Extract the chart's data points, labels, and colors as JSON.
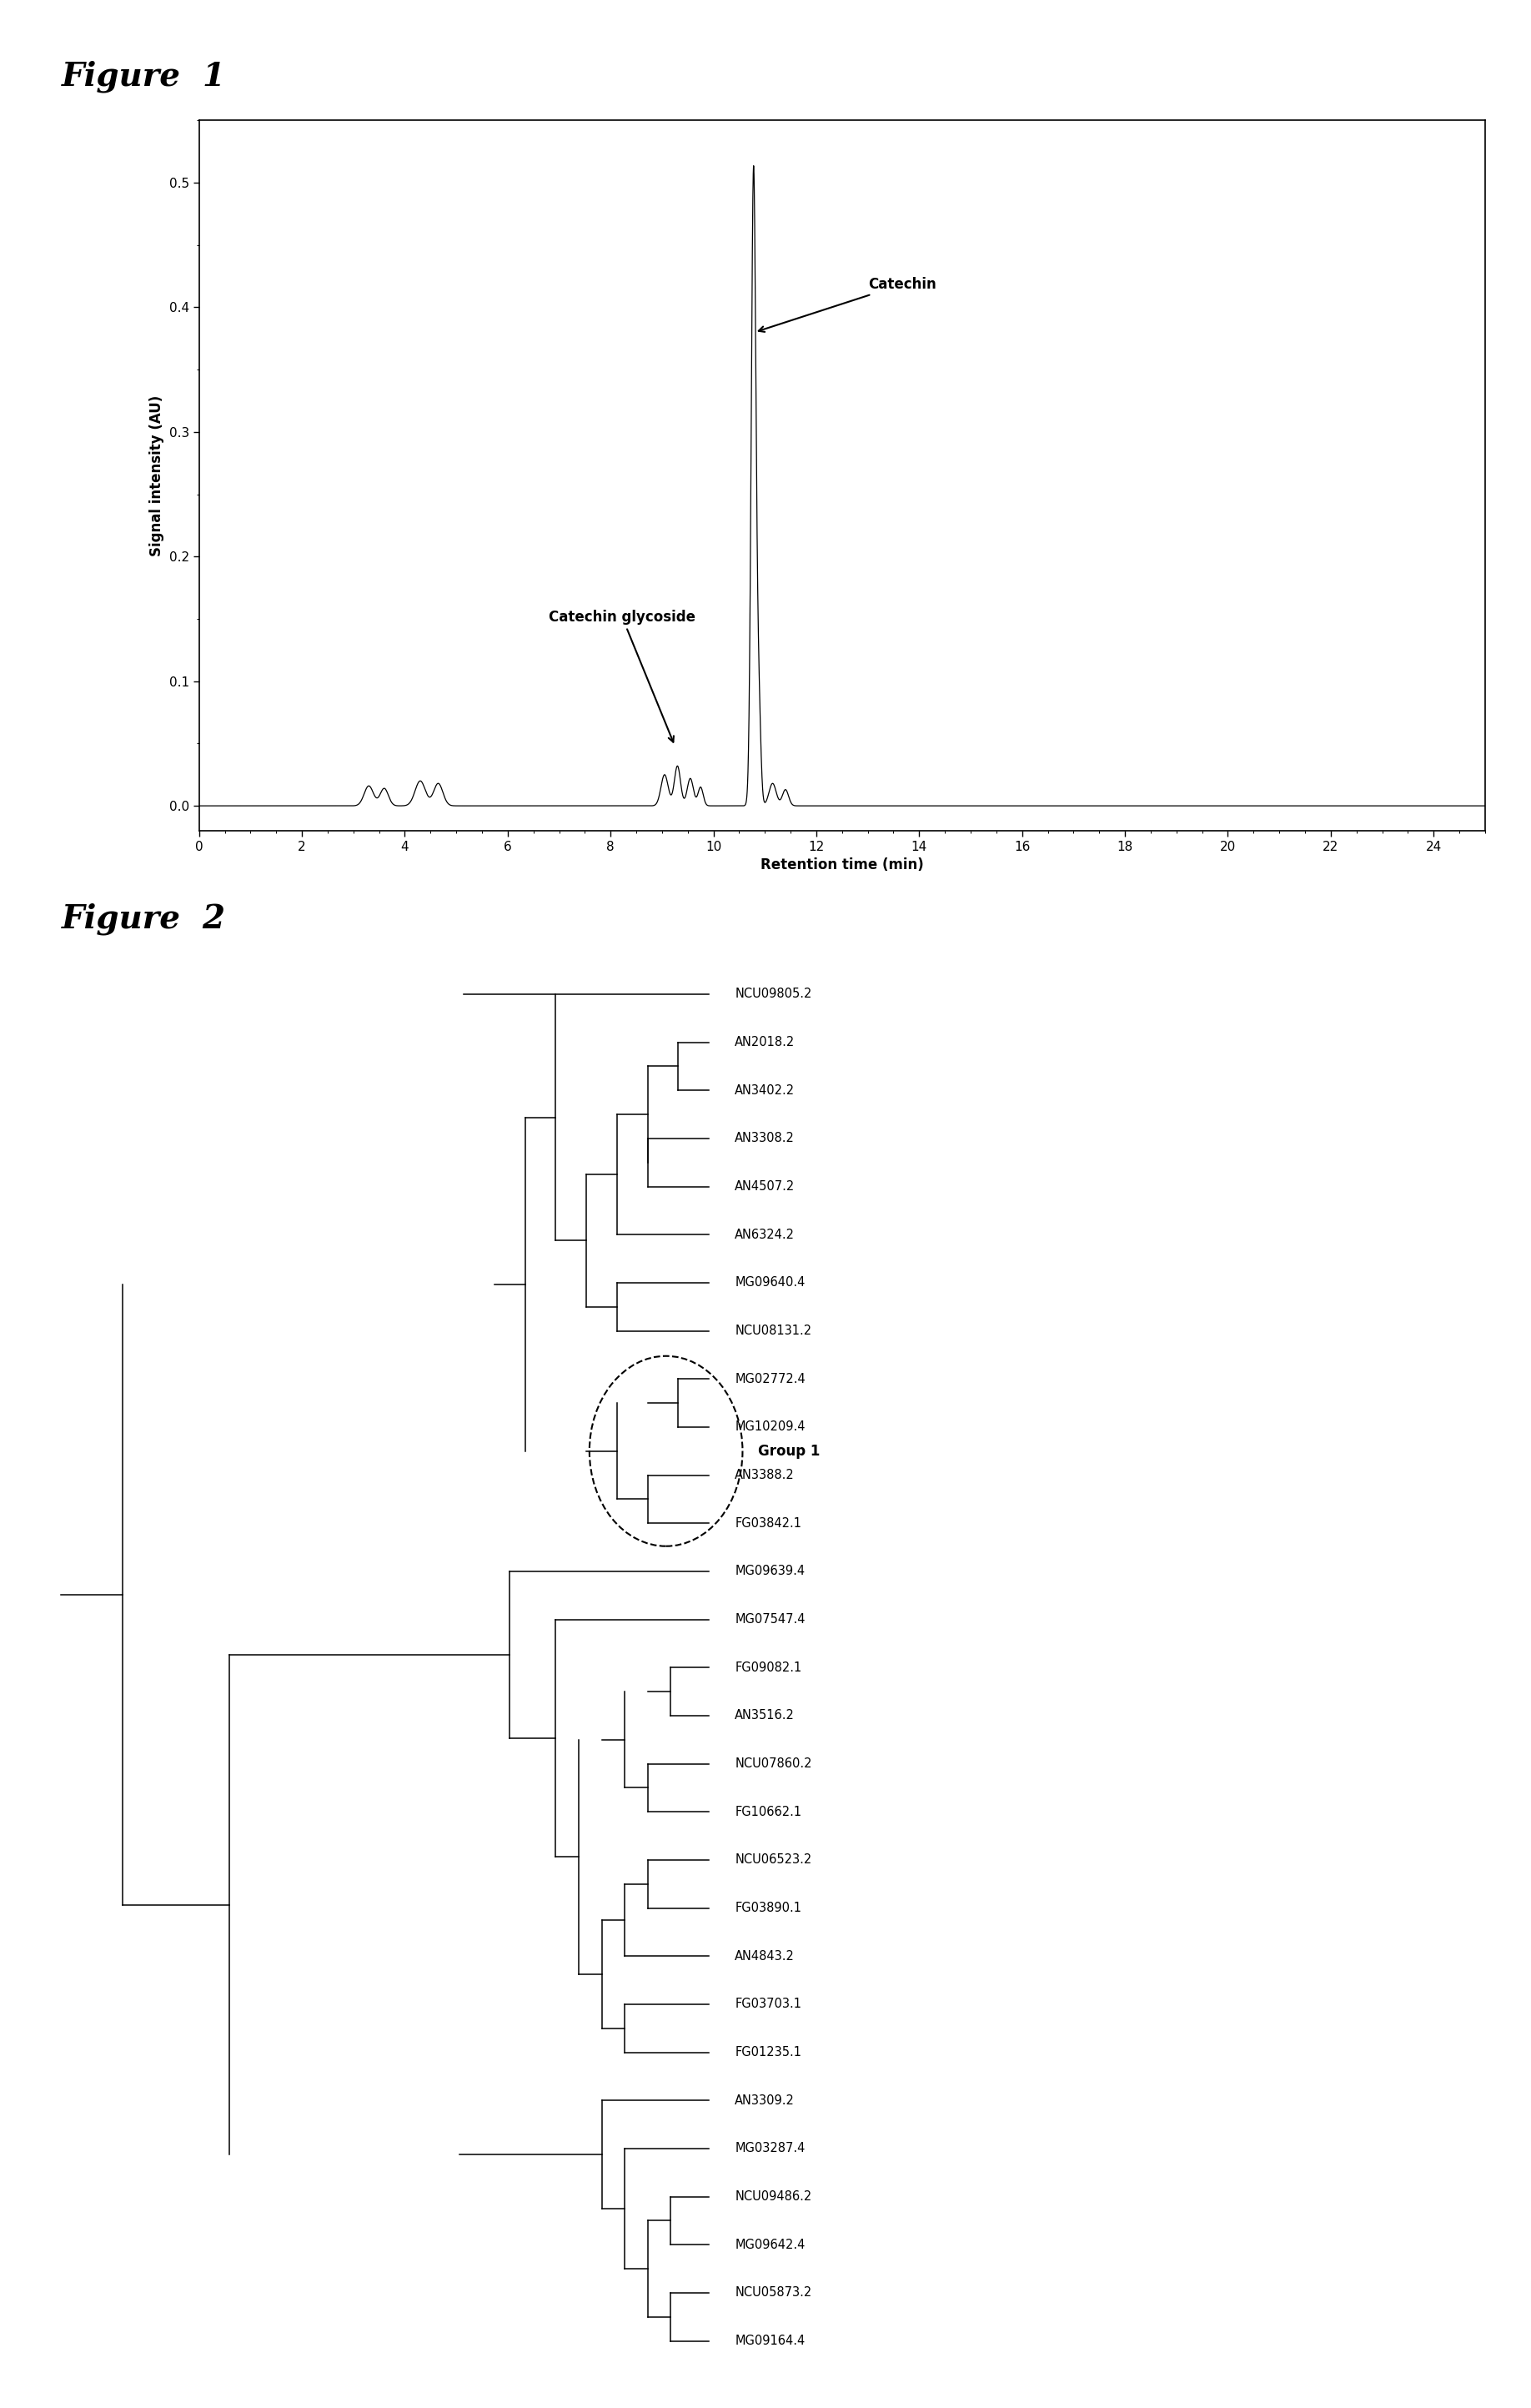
{
  "fig1_title": "Figure  1",
  "fig2_title": "Figure  2",
  "chromatogram": {
    "ylabel": "Signal intensity (AU)",
    "xlabel": "Retention time (min)",
    "xlim": [
      0,
      25
    ],
    "ylim": [
      -0.02,
      0.55
    ],
    "yticks": [
      0.0,
      0.1,
      0.2,
      0.3,
      0.4,
      0.5
    ],
    "xticks": [
      0,
      2,
      4,
      6,
      8,
      10,
      12,
      14,
      16,
      18,
      20,
      22,
      24
    ]
  },
  "tree": {
    "leaves": [
      "NCU09805.2",
      "AN2018.2",
      "AN3402.2",
      "AN3308.2",
      "AN4507.2",
      "AN6324.2",
      "MG09640.4",
      "NCU08131.2",
      "MG02772.4",
      "MG10209.4",
      "AN3388.2",
      "FG03842.1",
      "MG09639.4",
      "MG07547.4",
      "FG09082.1",
      "AN3516.2",
      "NCU07860.2",
      "FG10662.1",
      "NCU06523.2",
      "FG03890.1",
      "AN4843.2",
      "FG03703.1",
      "FG01235.1",
      "AN3309.2",
      "MG03287.4",
      "NCU09486.2",
      "MG09642.4",
      "NCU05873.2",
      "MG09164.4"
    ],
    "group1_members": [
      "MG02772.4",
      "MG10209.4",
      "AN3388.2",
      "FG03842.1"
    ],
    "group1_label": "Group 1"
  }
}
